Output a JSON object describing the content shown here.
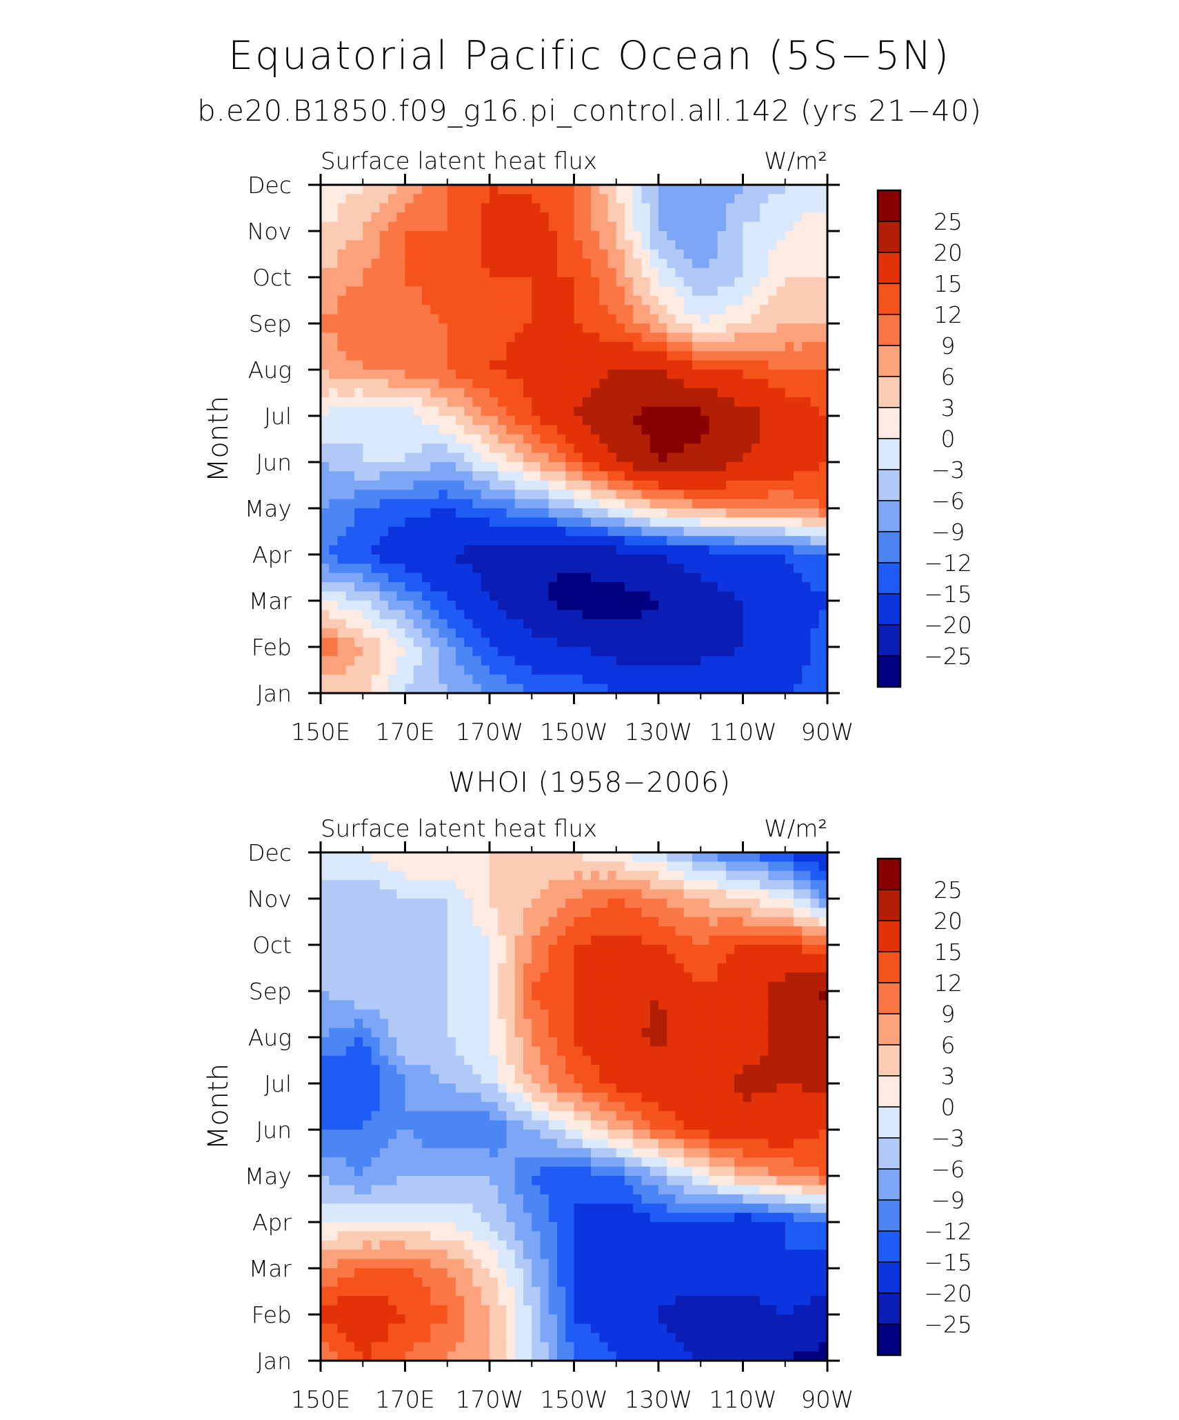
{
  "title": "Equatorial Pacific Ocean (5S−5N)",
  "subtitle": "b.e20.B1850.f09_g16.pi_control.all.142 (yrs 21−40)",
  "palette": [
    "#000080",
    "#0a1db4",
    "#0c35df",
    "#1f5cf5",
    "#4c86f5",
    "#7da7f6",
    "#b0c9f7",
    "#d9e8fb",
    "#fdeae0",
    "#fccbb3",
    "#fba27d",
    "#fa7645",
    "#f6521b",
    "#e33207",
    "#b21f04",
    "#880000"
  ],
  "chart_data": [
    {
      "type": "heatmap",
      "panel_title": "",
      "title": "Surface latent heat flux",
      "units": "W/m²",
      "ylabel": "Month",
      "x_tick_labels": [
        "150E",
        "170E",
        "170W",
        "150W",
        "130W",
        "110W",
        "90W"
      ],
      "x_tick_lon": [
        150,
        170,
        190,
        210,
        230,
        250,
        270
      ],
      "y_tick_labels": [
        "Jan",
        "Feb",
        "Mar",
        "Apr",
        "May",
        "Jun",
        "Jul",
        "Aug",
        "Sep",
        "Oct",
        "Nov",
        "Dec"
      ],
      "xlim": [
        150,
        270
      ],
      "ylim": [
        1,
        12
      ],
      "levels": [
        -25,
        -20,
        -15,
        -12,
        -9,
        -6,
        -3,
        0,
        3,
        6,
        9,
        12,
        15,
        20,
        25
      ],
      "colorbar_labels": [
        "25",
        "20",
        "15",
        "12",
        "9",
        "6",
        "3",
        "0",
        "−3",
        "−6",
        "−9",
        "−12",
        "−15",
        "−20",
        "−25"
      ],
      "x": [
        150,
        160,
        170,
        180,
        190,
        200,
        210,
        220,
        230,
        240,
        250,
        260,
        270
      ],
      "y": [
        1,
        2,
        3,
        4,
        5,
        6,
        7,
        8,
        9,
        10,
        11,
        12
      ],
      "z": [
        [
          3,
          4,
          -3,
          -6,
          -9,
          -12,
          -12,
          -15,
          -15,
          -15,
          -15,
          -15,
          -12
        ],
        [
          12,
          6,
          0,
          -8,
          -15,
          -18,
          -20,
          -22,
          -24,
          -22,
          -20,
          -20,
          -12
        ],
        [
          0,
          -3,
          -9,
          -15,
          -20,
          -24,
          -27,
          -27,
          -25,
          -22,
          -20,
          -18,
          -15
        ],
        [
          -12,
          -15,
          -18,
          -20,
          -22,
          -24,
          -24,
          -22,
          -20,
          -18,
          -16,
          -15,
          -12
        ],
        [
          -9,
          -12,
          -14,
          -15,
          -12,
          -9,
          -5,
          0,
          5,
          8,
          9,
          9,
          12
        ],
        [
          -6,
          -3,
          -3,
          -6,
          0,
          6,
          12,
          20,
          25,
          24,
          20,
          18,
          15
        ],
        [
          0,
          -3,
          -2,
          3,
          9,
          15,
          20,
          24,
          27,
          26,
          22,
          18,
          15
        ],
        [
          6,
          9,
          10,
          12,
          15,
          16,
          18,
          20,
          20,
          16,
          14,
          12,
          12
        ],
        [
          9,
          12,
          10,
          12,
          14,
          15,
          15,
          12,
          6,
          0,
          3,
          6,
          6
        ],
        [
          6,
          9,
          12,
          14,
          15,
          15,
          15,
          9,
          0,
          -6,
          -3,
          3,
          3
        ],
        [
          3,
          6,
          12,
          12,
          16,
          18,
          12,
          6,
          -6,
          -9,
          -3,
          0,
          3
        ],
        [
          0,
          3,
          6,
          12,
          15,
          14,
          12,
          3,
          -6,
          -9,
          -6,
          -3,
          -3
        ]
      ]
    },
    {
      "type": "heatmap",
      "panel_title": "WHOI (1958−2006)",
      "title": "Surface latent heat flux",
      "units": "W/m²",
      "ylabel": "Month",
      "x_tick_labels": [
        "150E",
        "170E",
        "170W",
        "150W",
        "130W",
        "110W",
        "90W"
      ],
      "x_tick_lon": [
        150,
        170,
        190,
        210,
        230,
        250,
        270
      ],
      "y_tick_labels": [
        "Jan",
        "Feb",
        "Mar",
        "Apr",
        "May",
        "Jun",
        "Jul",
        "Aug",
        "Sep",
        "Oct",
        "Nov",
        "Dec"
      ],
      "xlim": [
        150,
        270
      ],
      "ylim": [
        1,
        12
      ],
      "levels": [
        -25,
        -20,
        -15,
        -12,
        -9,
        -6,
        -3,
        0,
        3,
        6,
        9,
        12,
        15,
        20,
        25
      ],
      "colorbar_labels": [
        "25",
        "20",
        "15",
        "12",
        "9",
        "6",
        "3",
        "0",
        "−3",
        "−6",
        "−9",
        "−12",
        "−15",
        "−20",
        "−25"
      ],
      "x": [
        150,
        160,
        170,
        180,
        190,
        200,
        210,
        220,
        230,
        240,
        250,
        260,
        270
      ],
      "y": [
        1,
        2,
        3,
        4,
        5,
        6,
        7,
        8,
        9,
        10,
        11,
        12
      ],
      "z": [
        [
          9,
          15,
          12,
          9,
          6,
          -3,
          -12,
          -15,
          -18,
          -20,
          -24,
          -25,
          -27
        ],
        [
          16,
          18,
          15,
          12,
          6,
          -3,
          -15,
          -18,
          -20,
          -24,
          -22,
          -20,
          -22
        ],
        [
          9,
          12,
          12,
          9,
          3,
          -6,
          -15,
          -18,
          -18,
          -15,
          -18,
          -15,
          -18
        ],
        [
          0,
          0,
          0,
          0,
          -3,
          -9,
          -15,
          -18,
          -15,
          -15,
          -18,
          -15,
          -12
        ],
        [
          -6,
          -9,
          -6,
          -6,
          -6,
          -12,
          -15,
          -12,
          -6,
          0,
          6,
          9,
          12
        ],
        [
          -12,
          -12,
          -9,
          -12,
          -12,
          -6,
          0,
          6,
          12,
          16,
          18,
          18,
          15
        ],
        [
          -15,
          -15,
          -9,
          -6,
          -3,
          6,
          12,
          16,
          18,
          18,
          21,
          20,
          21
        ],
        [
          -9,
          -12,
          -3,
          -3,
          0,
          9,
          15,
          18,
          21,
          16,
          18,
          21,
          21
        ],
        [
          -6,
          -3,
          -6,
          -3,
          0,
          12,
          15,
          18,
          20,
          15,
          18,
          22,
          26
        ],
        [
          -3,
          -3,
          -6,
          -3,
          0,
          9,
          15,
          16,
          15,
          12,
          15,
          15,
          12
        ],
        [
          -6,
          -6,
          -3,
          -3,
          3,
          6,
          9,
          12,
          9,
          6,
          3,
          0,
          -9
        ],
        [
          0,
          0,
          3,
          3,
          3,
          3,
          3,
          0,
          -3,
          -9,
          -12,
          -15,
          -20
        ]
      ]
    }
  ]
}
